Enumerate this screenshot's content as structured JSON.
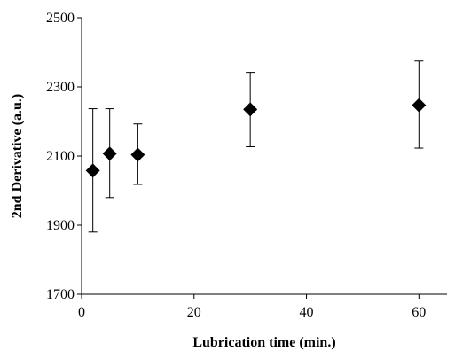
{
  "chart_data": {
    "type": "scatter",
    "title": "",
    "xlabel": "Lubrication  time (min.)",
    "ylabel": "2nd Derivative (a.u.)",
    "xlim": [
      0,
      65
    ],
    "ylim": [
      1700,
      2500
    ],
    "xticks": [
      0,
      20,
      40,
      60
    ],
    "yticks": [
      1700,
      1900,
      2100,
      2300,
      2500
    ],
    "grid": false,
    "legend": "none",
    "marker": "diamond",
    "marker_color": "#000000",
    "points": [
      {
        "x": 2,
        "y": 2058,
        "err_low": 1880,
        "err_high": 2237
      },
      {
        "x": 5,
        "y": 2107,
        "err_low": 1980,
        "err_high": 2237
      },
      {
        "x": 10,
        "y": 2104,
        "err_low": 2018,
        "err_high": 2193
      },
      {
        "x": 30,
        "y": 2235,
        "err_low": 2127,
        "err_high": 2342
      },
      {
        "x": 60,
        "y": 2247,
        "err_low": 2123,
        "err_high": 2375
      }
    ]
  }
}
